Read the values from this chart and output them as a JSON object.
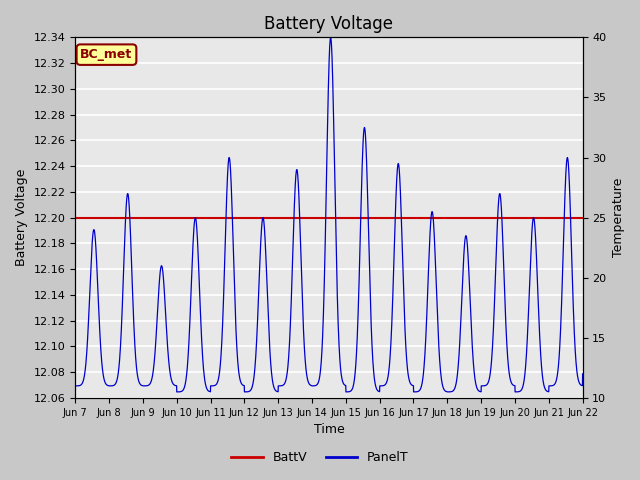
{
  "title": "Battery Voltage",
  "xlabel": "Time",
  "ylabel_left": "Battery Voltage",
  "ylabel_right": "Temperature",
  "battv_value": 12.2,
  "ylim_left": [
    12.06,
    12.34
  ],
  "ylim_right": [
    10,
    40
  ],
  "x_tick_labels": [
    "Jun 7",
    "Jun 8",
    "Jun 9",
    "Jun 10",
    "Jun 11",
    "Jun 12",
    "Jun 13",
    "Jun 14",
    "Jun 15",
    "Jun 16",
    "Jun 17",
    "Jun 18",
    "Jun 19",
    "Jun 20",
    "Jun 21",
    "Jun 22"
  ],
  "batt_color": "#cc0000",
  "panel_color": "#0000cc",
  "background_color": "#e8e8e8",
  "fig_background": "#c8c8c8",
  "annotation_text": "BC_met",
  "annotation_bg": "#ffff99",
  "annotation_border": "#8b0000",
  "title_fontsize": 12,
  "axis_fontsize": 9,
  "tick_fontsize": 8,
  "legend_fontsize": 9
}
